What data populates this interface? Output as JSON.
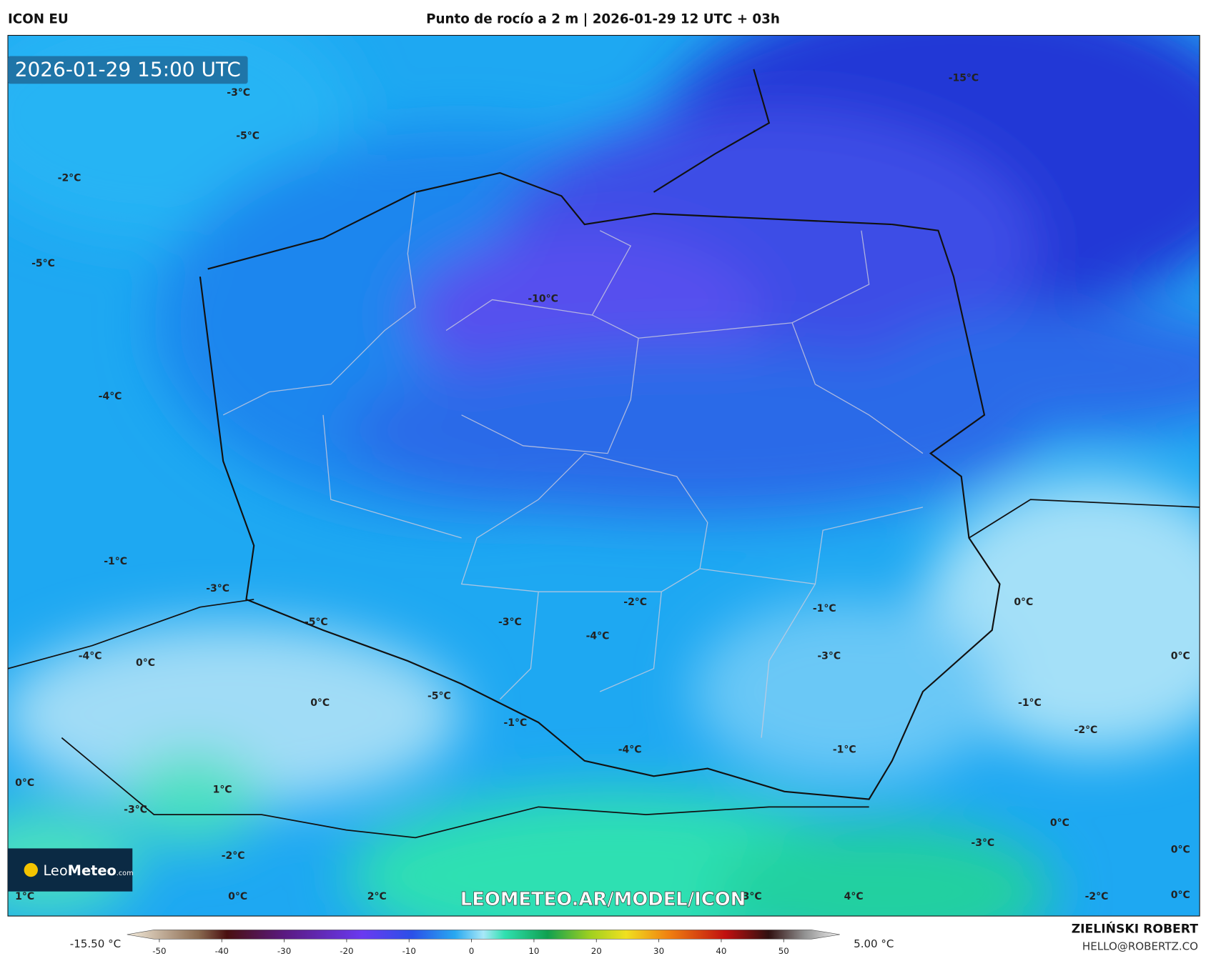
{
  "header": {
    "model": "ICON EU",
    "title": "Punto de rocío a 2 m | 2026-01-29 12 UTC + 03h"
  },
  "timestamp": "2026-01-29 15:00 UTC",
  "contour_labels": [
    "-3°C",
    "-5°C",
    "-2°C",
    "-5°C",
    "-15°C",
    "-10°C",
    "-4°C",
    "-1°C",
    "-3°C",
    "-5°C",
    "-4°C",
    "0°C",
    "-2°C",
    "-1°C",
    "0°C",
    "-3°C",
    "-4°C",
    "-3°C",
    "0°C",
    "-5°C",
    "0°C",
    "-1°C",
    "-1°C",
    "-2°C",
    "-4°C",
    "-1°C",
    "0°C",
    "1°C",
    "-3°C",
    "0°C",
    "-3°C",
    "0°C",
    "-2°C",
    "1°C",
    "0°C",
    "2°C",
    "3°C",
    "4°C",
    "-2°C",
    "0°C"
  ],
  "logo": {
    "leo": "Leo",
    "meteo": "Meteo",
    "com": ".com"
  },
  "watermark": "LEOMETEO.AR/MODEL/ICON",
  "colorbar": {
    "min_label": "-15.50 °C",
    "max_label": "5.00 °C",
    "ticks": [
      -50,
      -40,
      -30,
      -20,
      -10,
      0,
      10,
      20,
      30,
      40,
      50
    ]
  },
  "author": {
    "name": "ZIELIŃSKI ROBERT",
    "email": "HELLO@ROBERTZ.CO"
  }
}
